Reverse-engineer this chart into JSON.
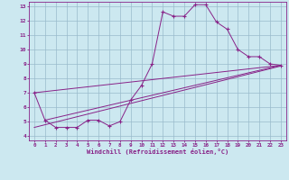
{
  "xlabel": "Windchill (Refroidissement éolien,°C)",
  "background_color": "#cce8f0",
  "grid_color": "#99bbcc",
  "line_color": "#882288",
  "xlim": [
    -0.5,
    23.5
  ],
  "ylim": [
    3.7,
    13.3
  ],
  "xticks": [
    0,
    1,
    2,
    3,
    4,
    5,
    6,
    7,
    8,
    9,
    10,
    11,
    12,
    13,
    14,
    15,
    16,
    17,
    18,
    19,
    20,
    21,
    22,
    23
  ],
  "yticks": [
    4,
    5,
    6,
    7,
    8,
    9,
    10,
    11,
    12,
    13
  ],
  "main_x": [
    0,
    1,
    2,
    3,
    4,
    5,
    6,
    7,
    8,
    9,
    10,
    11,
    12,
    13,
    14,
    15,
    16,
    17,
    18,
    19,
    20,
    21,
    22,
    23
  ],
  "main_y": [
    7.0,
    5.1,
    4.6,
    4.6,
    4.6,
    5.1,
    5.1,
    4.7,
    5.0,
    6.5,
    7.5,
    9.0,
    12.6,
    12.3,
    12.3,
    13.1,
    13.1,
    11.9,
    11.4,
    10.0,
    9.5,
    9.5,
    9.0,
    8.9
  ],
  "line1_x": [
    0,
    23
  ],
  "line1_y": [
    7.0,
    8.9
  ],
  "line2_x": [
    0,
    23
  ],
  "line2_y": [
    4.6,
    8.85
  ],
  "line3_x": [
    1,
    23
  ],
  "line3_y": [
    5.1,
    8.9
  ]
}
